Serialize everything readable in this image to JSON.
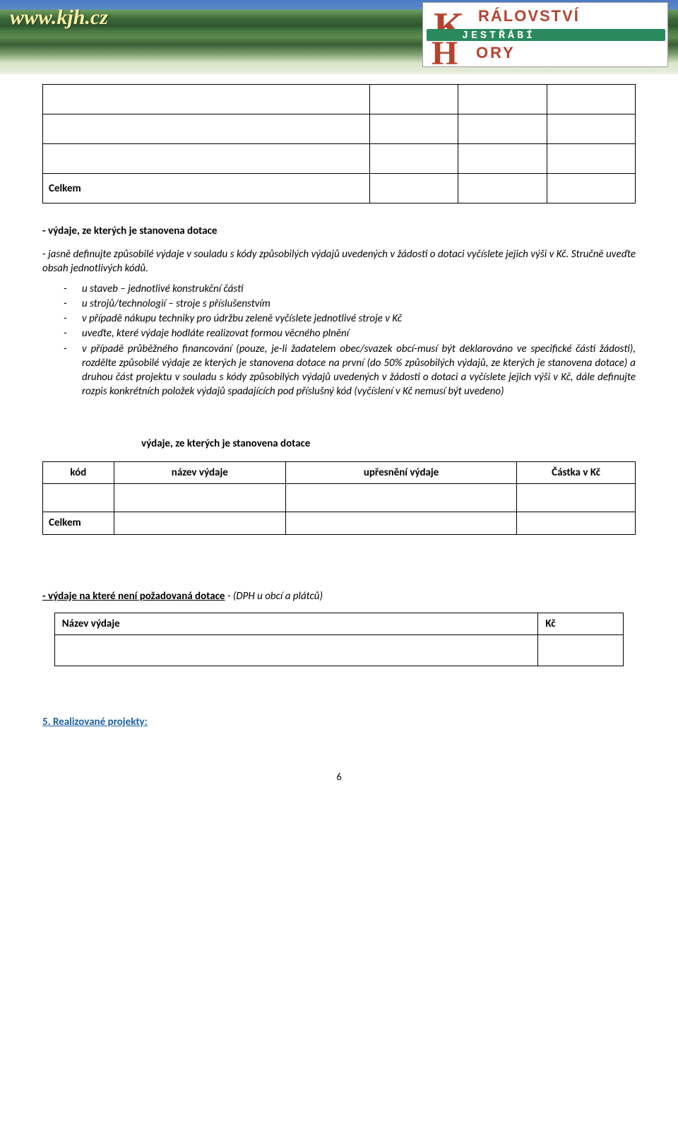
{
  "header": {
    "url": "www.kjh.cz",
    "logo_line1": "RÁLOVSTVÍ",
    "logo_line2": "JESTŘÁBÍ",
    "logo_line3": "ORY"
  },
  "table_top": {
    "celkem": "Celkem"
  },
  "sec_vydaje": {
    "lead": "-  výdaje, ze kterých je stanovena dotace",
    "intro": "- jasně definujte způsobilé výdaje v souladu s kódy způsobilých výdajů uvedených v žádosti o dotaci vyčíslete jejich výši v Kč. Stručně uveďte obsah jednotlivých kódů.",
    "bullets": [
      "u staveb – jednotlivé konstrukční části",
      "u strojů/technologií – stroje s příslušenstvím",
      "v případě nákupu techniky pro údržbu zeleně vyčíslete jednotlivé stroje v Kč",
      "uveďte, které výdaje hodláte realizovat formou věcného plnění",
      "v případě průběžného financování (pouze, je-li žadatelem obec/svazek obcí-musí být deklarováno ve specifické části žádosti), rozdělte způsobilé výdaje ze kterých je stanovena dotace na první (do 50% způsobilých výdajů, ze kterých je stanovena dotace) a druhou část projektu v souladu s kódy způsobilých výdajů uvedených v žádosti o dotaci a vyčíslete jejich výši v Kč, dále definujte rozpis konkrétních položek výdajů spadajících pod příslušný kód (vyčíslení v Kč nemusí být uvedeno)"
    ]
  },
  "expense": {
    "title": "výdaje, ze kterých je stanovena dotace",
    "headers": {
      "c1": "kód",
      "c2": "název výdaje",
      "c3": "upřesnění výdaje",
      "c4": "Částka v Kč"
    },
    "celkem": "Celkem"
  },
  "nepoz": {
    "ul": "- výdaje na které není požadovaná dotace",
    "ital": "   -   (DPH u obcí a plátců)",
    "col_n": "Název výdaje",
    "col_k": "Kč"
  },
  "sec5": "5. Realizované projekty:",
  "page_num": "6"
}
